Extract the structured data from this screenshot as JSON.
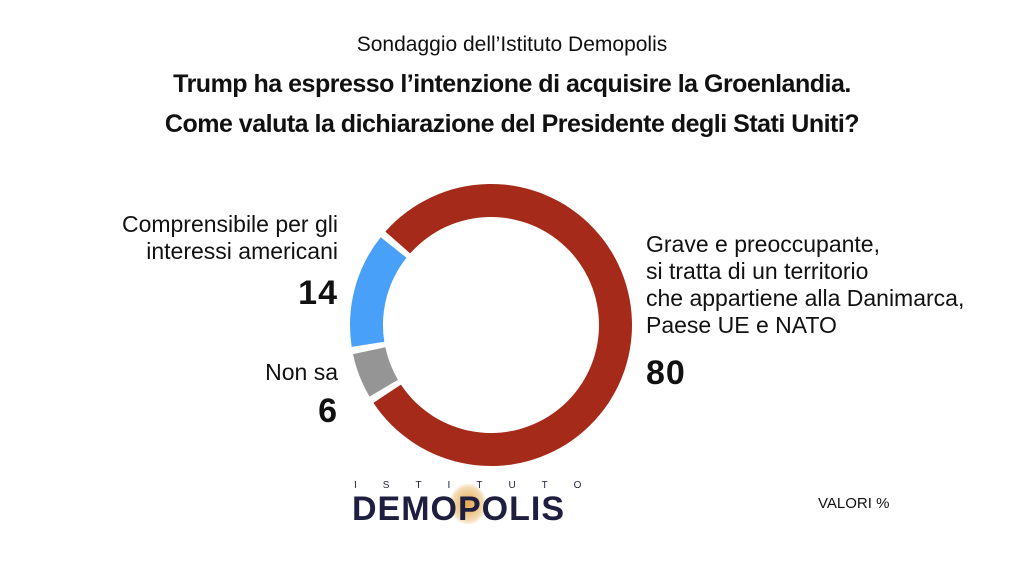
{
  "header": {
    "source": "Sondaggio dell’Istituto Demopolis",
    "title_line1": "Trump ha espresso l’intenzione di acquisire la Groenlandia.",
    "title_line2": "Come valuta la dichiarazione del Presidente degli Stati Uniti?"
  },
  "chart_data": {
    "type": "pie",
    "donut": true,
    "unit": "%",
    "slices": [
      {
        "label": "Grave e preoccupante, si tratta di un territorio che appartiene alla Danimarca, Paese UE e NATO",
        "value": 80,
        "color": "#a52a1a"
      },
      {
        "label": "Non sa",
        "value": 6,
        "color": "#959595"
      },
      {
        "label": "Comprensibile per gli interessi americani",
        "value": 14,
        "color": "#48a0f8"
      }
    ]
  },
  "labels": {
    "grave_lines": [
      "Grave e preoccupante,",
      "si tratta di un territorio",
      "che appartiene alla Danimarca,",
      "Paese UE e NATO"
    ],
    "grave_value": "80",
    "compr_lines": [
      "Comprensibile per gli",
      "interessi americani"
    ],
    "compr_value": "14",
    "nonsa": "Non sa",
    "nonsa_value": "6"
  },
  "footer": {
    "logo_top": "ISTITUTO",
    "logo_main": "DEMOPOLIS",
    "note": "VALORI %"
  }
}
